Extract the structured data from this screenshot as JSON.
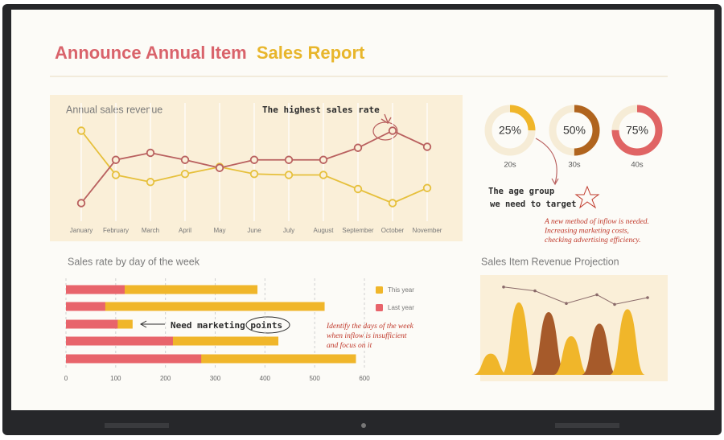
{
  "title_start": "Announce Annual Item",
  "title_end": "Sales Report",
  "chart_data": [
    {
      "type": "line",
      "title": "Annual sales revenue",
      "annotation": "The highest sales rate",
      "categories": [
        "January",
        "February",
        "March",
        "April",
        "May",
        "June",
        "July",
        "August",
        "September",
        "October",
        "November"
      ],
      "ylim": [
        0,
        100
      ],
      "series": [
        {
          "color": "#e6c03c",
          "values": [
            82,
            38,
            31,
            39,
            46,
            39,
            38,
            38,
            24,
            10,
            25
          ]
        },
        {
          "color": "#b9605f",
          "values": [
            10,
            53,
            60,
            53,
            45,
            53,
            53,
            53,
            65,
            82,
            66
          ]
        }
      ]
    },
    {
      "type": "donut",
      "categories": [
        "20s",
        "30s",
        "40s"
      ],
      "values": [
        25,
        50,
        75
      ],
      "value_labels": [
        "25%",
        "50%",
        "75%"
      ],
      "colors": [
        "#f0b62a",
        "#b0641e",
        "#e06464"
      ],
      "annotation": [
        "The age group",
        "we need to target"
      ],
      "note": [
        "A new method of inflow is needed.",
        "Increasing marketing costs,",
        "checking advertising efficiency."
      ]
    },
    {
      "type": "hbar",
      "title": "Sales rate by day of the week",
      "xlim": [
        0,
        600
      ],
      "xticks": [
        0,
        100,
        200,
        300,
        400,
        500,
        600
      ],
      "grid": true,
      "series": [
        {
          "name": "This year",
          "color": "#f0b62a",
          "values": [
            385,
            520,
            134,
            427,
            583
          ]
        },
        {
          "name": "Last year",
          "color": "#e8646b",
          "values": [
            118,
            79,
            104,
            215,
            272
          ]
        }
      ],
      "annotation": "Need marketing points",
      "note": [
        "Identify the days of the week",
        "when inflow is insufficient",
        "and focus on it"
      ]
    },
    {
      "type": "area",
      "title": "Sales Item Revenue Projection",
      "ylim": [
        0,
        100
      ],
      "values": [
        22,
        75,
        65,
        40,
        53,
        68
      ],
      "colors": [
        "#f0b62a",
        "#f0b62a",
        "#a65a2a",
        "#f0b62a",
        "#a65a2a",
        "#f0b62a"
      ],
      "line": {
        "color": "#8a6a6a",
        "values": [
          91,
          87,
          74,
          83,
          73,
          80
        ]
      }
    }
  ]
}
